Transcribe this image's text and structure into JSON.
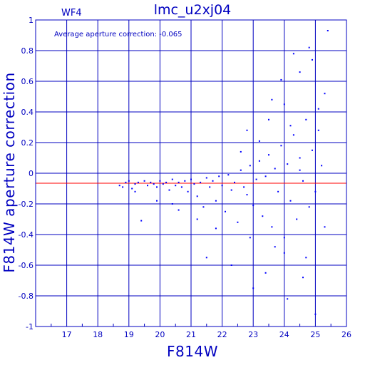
{
  "chart_data": {
    "type": "scatter",
    "title": "lmc_u2xj04",
    "panel_label": "WF4",
    "annotation": "Average aperture correction: -0.065",
    "xlabel": "F814W",
    "ylabel": "F814W aperture correction",
    "xlim": [
      16,
      26
    ],
    "ylim": [
      -1,
      1
    ],
    "xticks": [
      "17",
      "18",
      "19",
      "20",
      "21",
      "22",
      "23",
      "24",
      "25",
      "26"
    ],
    "yticks": [
      "1",
      "0.8",
      "0.6",
      "0.4",
      "0.2",
      "0",
      "-0.2",
      "-0.4",
      "-0.6",
      "-0.8",
      "-1"
    ],
    "grid": true,
    "reference_line": {
      "y": -0.065,
      "color": "#ff0000"
    },
    "axis_color": "#0000c0",
    "point_color": "#0000ff",
    "series": [
      {
        "marker": "dot",
        "points": [
          [
            18.7,
            -0.08
          ],
          [
            18.9,
            -0.06
          ],
          [
            19.0,
            -0.05
          ],
          [
            19.1,
            -0.1
          ],
          [
            19.2,
            -0.07
          ],
          [
            19.3,
            -0.06
          ],
          [
            19.4,
            -0.31
          ],
          [
            19.5,
            -0.05
          ],
          [
            19.6,
            -0.08
          ],
          [
            19.7,
            -0.06
          ],
          [
            19.8,
            -0.07
          ],
          [
            19.9,
            -0.09
          ],
          [
            20.0,
            -0.05
          ],
          [
            20.1,
            -0.07
          ],
          [
            20.2,
            -0.06
          ],
          [
            20.3,
            -0.11
          ],
          [
            20.4,
            -0.04
          ],
          [
            20.5,
            -0.08
          ],
          [
            20.6,
            -0.06
          ],
          [
            20.7,
            -0.09
          ],
          [
            20.8,
            -0.05
          ],
          [
            20.9,
            -0.12
          ],
          [
            21.0,
            -0.04
          ],
          [
            21.1,
            -0.07
          ],
          [
            21.2,
            -0.15
          ],
          [
            21.3,
            -0.06
          ],
          [
            21.4,
            -0.22
          ],
          [
            21.5,
            -0.03
          ],
          [
            21.6,
            -0.09
          ],
          [
            21.7,
            -0.05
          ],
          [
            21.8,
            -0.18
          ],
          [
            21.9,
            -0.02
          ],
          [
            22.0,
            -0.08
          ],
          [
            22.1,
            -0.25
          ],
          [
            22.2,
            -0.01
          ],
          [
            22.3,
            -0.11
          ],
          [
            22.4,
            -0.06
          ],
          [
            22.5,
            -0.32
          ],
          [
            22.6,
            0.02
          ],
          [
            22.7,
            -0.09
          ],
          [
            22.8,
            -0.14
          ],
          [
            22.9,
            0.05
          ],
          [
            23.0,
            -0.21
          ],
          [
            23.1,
            -0.04
          ],
          [
            23.2,
            0.08
          ],
          [
            23.3,
            -0.28
          ],
          [
            23.4,
            -0.02
          ],
          [
            23.5,
            0.12
          ],
          [
            23.6,
            -0.35
          ],
          [
            23.7,
            0.03
          ],
          [
            23.8,
            -0.12
          ],
          [
            23.9,
            0.18
          ],
          [
            24.0,
            -0.42
          ],
          [
            24.1,
            0.06
          ],
          [
            24.2,
            -0.18
          ],
          [
            24.3,
            0.25
          ],
          [
            24.4,
            -0.3
          ],
          [
            24.5,
            0.1
          ],
          [
            24.6,
            -0.05
          ],
          [
            24.7,
            0.35
          ],
          [
            24.8,
            -0.22
          ],
          [
            24.9,
            0.15
          ],
          [
            25.0,
            -0.12
          ],
          [
            25.1,
            0.42
          ],
          [
            25.2,
            0.05
          ],
          [
            25.3,
            -0.35
          ],
          [
            21.5,
            -0.55
          ],
          [
            22.3,
            -0.6
          ],
          [
            23.0,
            -0.75
          ],
          [
            23.4,
            -0.65
          ],
          [
            24.0,
            -0.52
          ],
          [
            24.6,
            -0.68
          ],
          [
            25.3,
            0.52
          ],
          [
            25.4,
            0.93
          ],
          [
            24.3,
            0.78
          ],
          [
            24.8,
            0.82
          ],
          [
            24.5,
            0.66
          ],
          [
            23.6,
            0.48
          ],
          [
            23.9,
            0.61
          ],
          [
            24.9,
            0.74
          ],
          [
            22.6,
            0.14
          ],
          [
            23.2,
            0.21
          ],
          [
            24.2,
            0.31
          ],
          [
            24.5,
            0.02
          ],
          [
            23.7,
            -0.48
          ],
          [
            22.9,
            -0.42
          ],
          [
            21.8,
            -0.36
          ],
          [
            21.2,
            -0.3
          ],
          [
            20.6,
            -0.24
          ],
          [
            19.9,
            -0.18
          ],
          [
            25.1,
            0.28
          ],
          [
            24.0,
            0.45
          ],
          [
            23.5,
            0.35
          ],
          [
            22.8,
            0.28
          ],
          [
            24.7,
            -0.55
          ],
          [
            24.1,
            -0.82
          ],
          [
            25.0,
            -0.92
          ],
          [
            20.4,
            -0.2
          ],
          [
            19.2,
            -0.12
          ],
          [
            18.8,
            -0.09
          ]
        ]
      }
    ]
  }
}
